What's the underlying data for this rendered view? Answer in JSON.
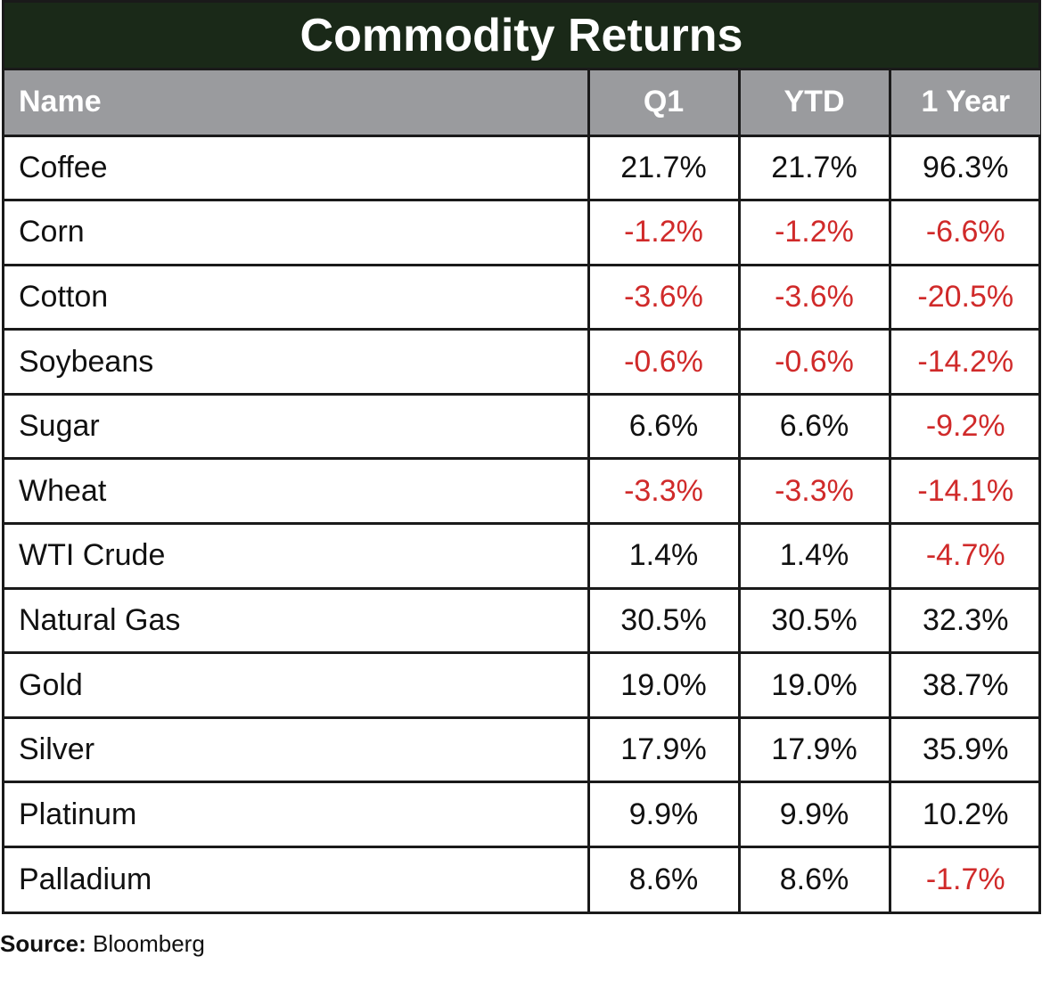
{
  "chart_data": {
    "type": "table",
    "title": "Commodity Returns",
    "columns": [
      "Name",
      "Q1",
      "YTD",
      "1 Year"
    ],
    "rows": [
      {
        "name": "Coffee",
        "values": [
          "21.7%",
          "21.7%",
          "96.3%"
        ]
      },
      {
        "name": "Corn",
        "values": [
          "-1.2%",
          "-1.2%",
          "-6.6%"
        ]
      },
      {
        "name": "Cotton",
        "values": [
          "-3.6%",
          "-3.6%",
          "-20.5%"
        ]
      },
      {
        "name": "Soybeans",
        "values": [
          "-0.6%",
          "-0.6%",
          "-14.2%"
        ]
      },
      {
        "name": "Sugar",
        "values": [
          "6.6%",
          "6.6%",
          "-9.2%"
        ]
      },
      {
        "name": "Wheat",
        "values": [
          "-3.3%",
          "-3.3%",
          "-14.1%"
        ]
      },
      {
        "name": "WTI Crude",
        "values": [
          "1.4%",
          "1.4%",
          "-4.7%"
        ]
      },
      {
        "name": "Natural Gas",
        "values": [
          "30.5%",
          "30.5%",
          "32.3%"
        ]
      },
      {
        "name": "Gold",
        "values": [
          "19.0%",
          "19.0%",
          "38.7%"
        ]
      },
      {
        "name": "Silver",
        "values": [
          "17.9%",
          "17.9%",
          "35.9%"
        ]
      },
      {
        "name": "Platinum",
        "values": [
          "9.9%",
          "9.9%",
          "10.2%"
        ]
      },
      {
        "name": "Palladium",
        "values": [
          "8.6%",
          "8.6%",
          "-1.7%"
        ]
      }
    ]
  },
  "source": {
    "label": "Source:",
    "text": "Bloomberg"
  },
  "colors": {
    "title_bg": "#1a2918",
    "header_bg": "#9a9b9e",
    "negative": "#d02a2a",
    "border": "#1a1a1a"
  }
}
